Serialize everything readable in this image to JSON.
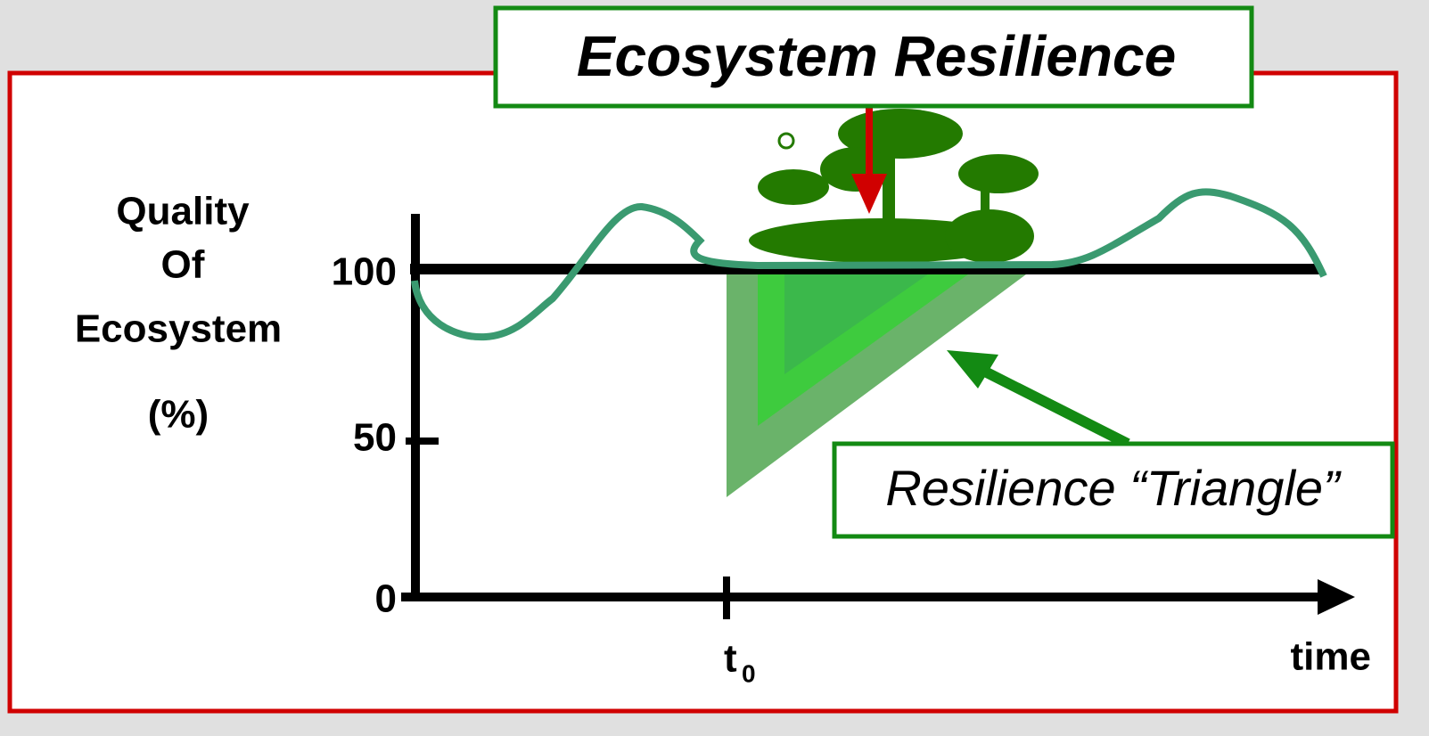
{
  "title": "Ecosystem Resilience",
  "y_axis": {
    "label_lines": [
      "Quality",
      "Of",
      "Ecosystem",
      "(%)"
    ],
    "ticks": [
      "100",
      "50",
      "0"
    ]
  },
  "x_axis": {
    "marker": "t",
    "marker_subscript": "0",
    "label": "time"
  },
  "callout": "Resilience “Triangle”"
}
